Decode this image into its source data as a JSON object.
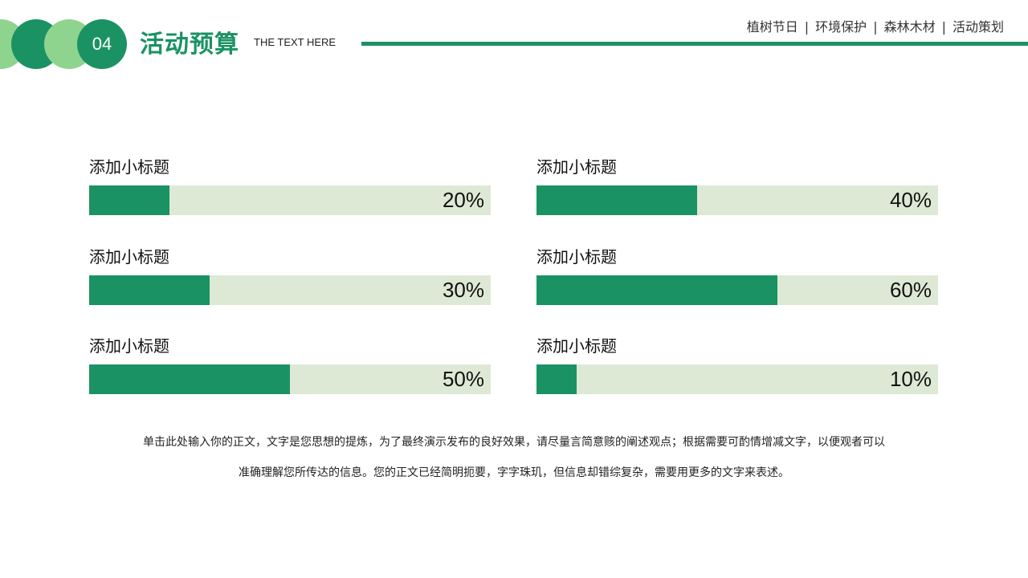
{
  "header": {
    "section_number": "04",
    "title": "活动预算",
    "subtitle": "THE TEXT HERE",
    "nav": [
      "植树节日",
      "环境保护",
      "森林木材",
      "活动策划"
    ],
    "nav_separator": "|"
  },
  "items": [
    {
      "label": "添加小标题",
      "value": 20,
      "display": "20%"
    },
    {
      "label": "添加小标题",
      "value": 40,
      "display": "40%"
    },
    {
      "label": "添加小标题",
      "value": 30,
      "display": "30%"
    },
    {
      "label": "添加小标题",
      "value": 60,
      "display": "60%"
    },
    {
      "label": "添加小标题",
      "value": 50,
      "display": "50%"
    },
    {
      "label": "添加小标题",
      "value": 10,
      "display": "10%"
    }
  ],
  "body": {
    "line1": "单击此处输入你的正文，文字是您思想的提炼，为了最终演示发布的良好效果，请尽量言简意赅的阐述观点；根据需要可酌情增减文字，以便观者可以",
    "line2": "准确理解您所传达的信息。您的正文已经简明扼要，字字珠玑，但信息却错综复杂，需要用更多的文字来表述。"
  },
  "colors": {
    "primary": "#1b9264",
    "light": "#8fd48e",
    "track": "#dde9d5"
  }
}
